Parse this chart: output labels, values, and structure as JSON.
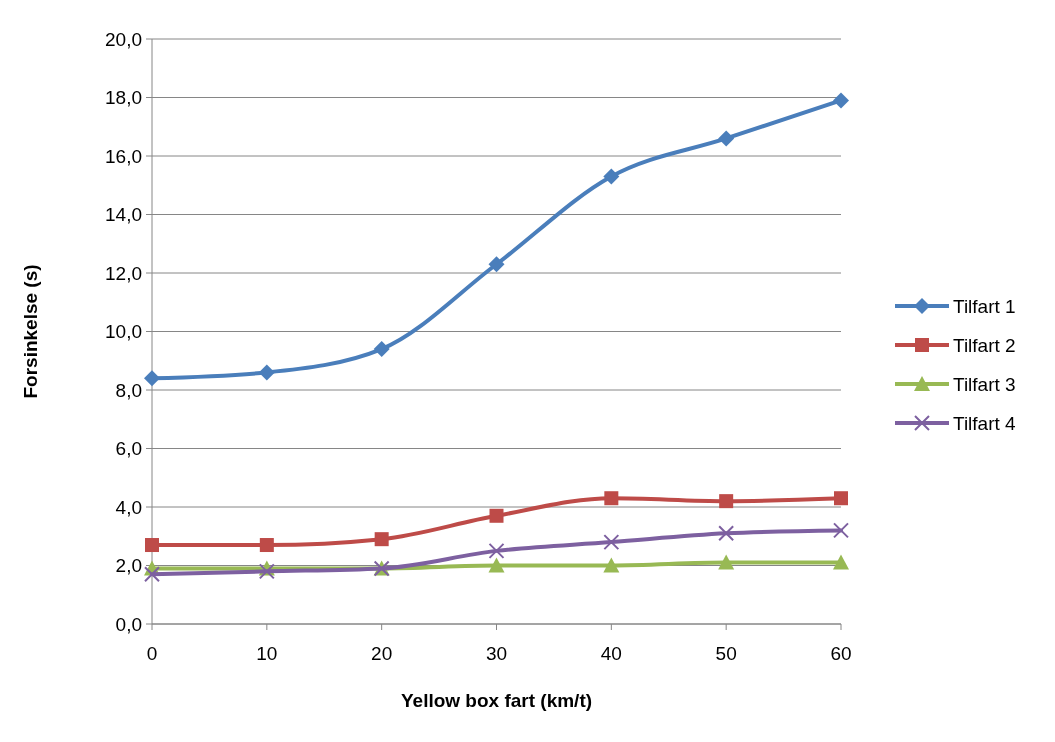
{
  "chart_data": {
    "type": "line",
    "xlabel": "Yellow box fart (km/t)",
    "ylabel": "Forsinkelse (s)",
    "x": [
      0,
      10,
      20,
      30,
      40,
      50,
      60
    ],
    "xlim": [
      0,
      60
    ],
    "xticks": [
      0,
      10,
      20,
      30,
      40,
      50,
      60
    ],
    "ylim": [
      0,
      20
    ],
    "yticks": [
      {
        "value": 0,
        "label": "0,0"
      },
      {
        "value": 2,
        "label": "2,0"
      },
      {
        "value": 4,
        "label": "4,0"
      },
      {
        "value": 6,
        "label": "6,0"
      },
      {
        "value": 8,
        "label": "8,0"
      },
      {
        "value": 10,
        "label": "10,0"
      },
      {
        "value": 12,
        "label": "12,0"
      },
      {
        "value": 14,
        "label": "14,0"
      },
      {
        "value": 16,
        "label": "16,0"
      },
      {
        "value": 18,
        "label": "18,0"
      },
      {
        "value": 20,
        "label": "20,0"
      }
    ],
    "grid": "y",
    "legend": "right",
    "line_style": "solid",
    "series": [
      {
        "name": "Tilfart 1",
        "color": "#4a7ebb",
        "marker": "diamond",
        "values": [
          8.4,
          8.6,
          9.4,
          12.3,
          15.3,
          16.6,
          17.9
        ]
      },
      {
        "name": "Tilfart 2",
        "color": "#be4b48",
        "marker": "square",
        "values": [
          2.7,
          2.7,
          2.9,
          3.7,
          4.3,
          4.2,
          4.3
        ]
      },
      {
        "name": "Tilfart 3",
        "color": "#98b954",
        "marker": "triangle",
        "values": [
          1.9,
          1.9,
          1.9,
          2.0,
          2.0,
          2.1,
          2.1
        ]
      },
      {
        "name": "Tilfart 4",
        "color": "#7d60a0",
        "marker": "cross",
        "values": [
          1.7,
          1.8,
          1.9,
          2.5,
          2.8,
          3.1,
          3.2
        ]
      }
    ]
  }
}
